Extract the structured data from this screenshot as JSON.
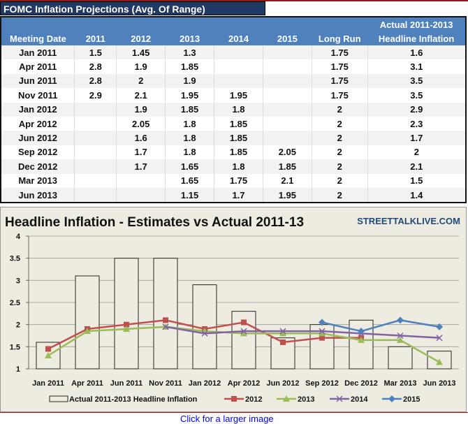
{
  "table": {
    "title": "FOMC Inflation Projections (Avg. Of Range)",
    "header_top": "Actual 2011-2013",
    "headers": [
      "Meeting Date",
      "2011",
      "2012",
      "2013",
      "2014",
      "2015",
      "Long Run",
      "Headline Inflation"
    ],
    "rows": [
      [
        "Jan 2011",
        "1.5",
        "1.45",
        "1.3",
        "",
        "",
        "1.75",
        "1.6"
      ],
      [
        "Apr 2011",
        "2.8",
        "1.9",
        "1.85",
        "",
        "",
        "1.75",
        "3.1"
      ],
      [
        "Jun 2011",
        "2.8",
        "2",
        "1.9",
        "",
        "",
        "1.75",
        "3.5"
      ],
      [
        "Nov 2011",
        "2.9",
        "2.1",
        "1.95",
        "1.95",
        "",
        "1.75",
        "3.5"
      ],
      [
        "Jan 2012",
        "",
        "1.9",
        "1.85",
        "1.8",
        "",
        "2",
        "2.9"
      ],
      [
        "Apr 2012",
        "",
        "2.05",
        "1.8",
        "1.85",
        "",
        "2",
        "2.3"
      ],
      [
        "Jun 2012",
        "",
        "1.6",
        "1.8",
        "1.85",
        "",
        "2",
        "1.7"
      ],
      [
        "Sep 2012",
        "",
        "1.7",
        "1.8",
        "1.85",
        "2.05",
        "2",
        "2"
      ],
      [
        "Dec 2012",
        "",
        "1.7",
        "1.65",
        "1.8",
        "1.85",
        "2",
        "2.1"
      ],
      [
        "Mar 2013",
        "",
        "",
        "1.65",
        "1.75",
        "2.1",
        "2",
        "1.5"
      ],
      [
        "Jun 2013",
        "",
        "",
        "1.15",
        "1.7",
        "1.95",
        "2",
        "1.4"
      ]
    ]
  },
  "chart_data": {
    "type": "bar+line",
    "title": "Headline Inflation - Estimates vs Actual 2011-13",
    "watermark": "STREETTALKLIVE.COM",
    "categories": [
      "Jan 2011",
      "Apr 2011",
      "Jun 2011",
      "Nov 2011",
      "Jan 2012",
      "Apr 2012",
      "Jun 2012",
      "Sep 2012",
      "Dec 2012",
      "Mar 2013",
      "Jun 2013"
    ],
    "ylim": [
      1,
      4
    ],
    "yticks": [
      "1",
      "1.5",
      "2",
      "2.5",
      "3",
      "3.5",
      "4"
    ],
    "legend_position": "bottom",
    "bars": {
      "name": "Actual 2011-2013 Headline Inflation",
      "values": [
        1.6,
        3.1,
        3.5,
        3.5,
        2.9,
        2.3,
        1.7,
        2,
        2.1,
        1.5,
        1.4
      ],
      "color": "#eeece1"
    },
    "series": [
      {
        "name": "2012",
        "color": "#c0504d",
        "marker": "square",
        "values": [
          1.45,
          1.9,
          2,
          2.1,
          1.9,
          2.05,
          1.6,
          1.7,
          1.7,
          null,
          null
        ]
      },
      {
        "name": "2013",
        "color": "#9bbb59",
        "marker": "triangle",
        "values": [
          1.3,
          1.85,
          1.9,
          1.95,
          1.85,
          1.8,
          1.8,
          1.8,
          1.65,
          1.65,
          1.15
        ]
      },
      {
        "name": "2014",
        "color": "#8064a2",
        "marker": "x",
        "values": [
          null,
          null,
          null,
          1.95,
          1.8,
          1.85,
          1.85,
          1.85,
          1.8,
          1.75,
          1.7
        ]
      },
      {
        "name": "2015",
        "color": "#4f81bd",
        "marker": "diamond",
        "values": [
          null,
          null,
          null,
          null,
          null,
          null,
          null,
          2.05,
          1.85,
          2.1,
          1.95
        ]
      }
    ]
  },
  "caption": "Click for a larger image"
}
